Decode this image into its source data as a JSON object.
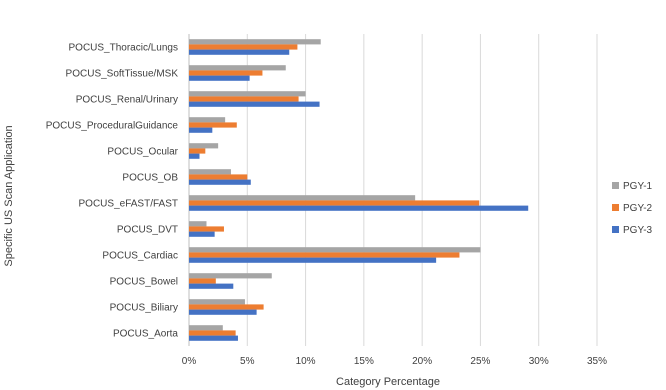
{
  "chart_data": {
    "type": "bar",
    "orientation": "horizontal",
    "title": "",
    "xlabel": "Category Percentage",
    "ylabel": "Specific US Scan Application",
    "xlim": [
      0,
      35
    ],
    "x_ticks": [
      "0%",
      "5%",
      "10%",
      "15%",
      "20%",
      "25%",
      "30%",
      "35%"
    ],
    "x_tick_values": [
      0,
      5,
      10,
      15,
      20,
      25,
      30,
      35
    ],
    "grid": "vertical",
    "legend_position": "right",
    "categories": [
      "POCUS_Thoracic/Lungs",
      "POCUS_SoftTissue/MSK",
      "POCUS_Renal/Urinary",
      "POCUS_ProceduralGuidance",
      "POCUS_Ocular",
      "POCUS_OB",
      "POCUS_eFAST/FAST",
      "POCUS_DVT",
      "POCUS_Cardiac",
      "POCUS_Bowel",
      "POCUS_Biliary",
      "POCUS_Aorta"
    ],
    "series": [
      {
        "name": "PGY-1",
        "color": "#a5a5a5",
        "values": [
          11.3,
          8.3,
          10.0,
          3.1,
          2.5,
          3.6,
          19.4,
          1.5,
          25.0,
          7.1,
          4.8,
          2.9
        ]
      },
      {
        "name": "PGY-2",
        "color": "#ed7d31",
        "values": [
          9.3,
          6.3,
          9.4,
          4.1,
          1.4,
          5.0,
          24.9,
          3.0,
          23.2,
          2.3,
          6.4,
          4.0
        ]
      },
      {
        "name": "PGY-3",
        "color": "#4472c4",
        "values": [
          8.6,
          5.2,
          11.2,
          2.0,
          0.9,
          5.3,
          29.1,
          2.2,
          21.2,
          3.8,
          5.8,
          4.2
        ]
      }
    ],
    "legend_order": [
      "PGY-1",
      "PGY-2",
      "PGY-3"
    ]
  }
}
